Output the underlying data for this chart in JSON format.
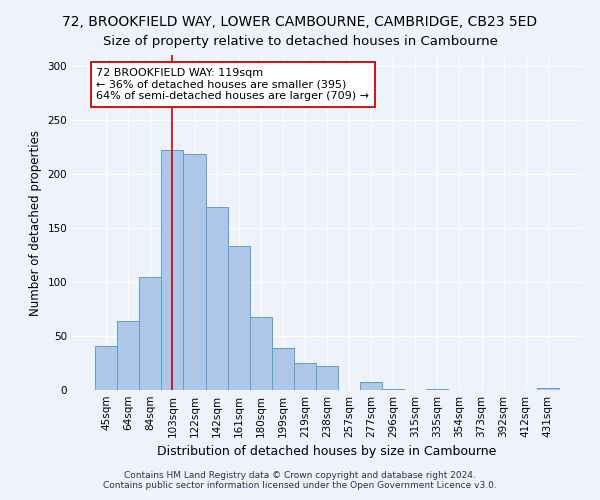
{
  "title": "72, BROOKFIELD WAY, LOWER CAMBOURNE, CAMBRIDGE, CB23 5ED",
  "subtitle": "Size of property relative to detached houses in Cambourne",
  "xlabel": "Distribution of detached houses by size in Cambourne",
  "ylabel": "Number of detached properties",
  "bar_labels": [
    "45sqm",
    "64sqm",
    "84sqm",
    "103sqm",
    "122sqm",
    "142sqm",
    "161sqm",
    "180sqm",
    "199sqm",
    "219sqm",
    "238sqm",
    "257sqm",
    "277sqm",
    "296sqm",
    "315sqm",
    "335sqm",
    "354sqm",
    "373sqm",
    "392sqm",
    "412sqm",
    "431sqm"
  ],
  "bar_values": [
    41,
    64,
    105,
    222,
    218,
    169,
    133,
    68,
    39,
    25,
    22,
    0,
    7,
    1,
    0,
    1,
    0,
    0,
    0,
    0,
    2
  ],
  "bar_color": "#aec6e8",
  "bar_edge_color": "#5a9fd4",
  "vline_x_index": 3,
  "vline_color": "#cc0000",
  "annotation_text": "72 BROOKFIELD WAY: 119sqm\n← 36% of detached houses are smaller (395)\n64% of semi-detached houses are larger (709) →",
  "annotation_box_color": "#ffffff",
  "annotation_box_edge_color": "#cc0000",
  "ylim": [
    0,
    310
  ],
  "yticks": [
    0,
    50,
    100,
    150,
    200,
    250,
    300
  ],
  "footer_line1": "Contains HM Land Registry data © Crown copyright and database right 2024.",
  "footer_line2": "Contains public sector information licensed under the Open Government Licence v3.0.",
  "background_color": "#eef2fa",
  "plot_background_color": "#eef2fa",
  "title_fontsize": 10,
  "subtitle_fontsize": 9.5
}
